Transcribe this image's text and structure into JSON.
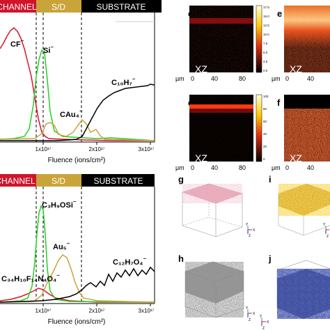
{
  "top_panel": {
    "bands": [
      {
        "label": "CHANNEL",
        "color": "#d0142c"
      },
      {
        "label": "S/D",
        "color": "#c9a43a"
      },
      {
        "label": "SUBSTRATE",
        "color": "#000000"
      }
    ],
    "species_labels": [
      "CF",
      "Si",
      "CAu₄",
      "C₁₀H₇"
    ],
    "superscripts": [
      "⁻",
      "⁻",
      "⁻",
      "⁻"
    ],
    "xticks": [
      "1x10¹⁷",
      "2x10¹⁷",
      "3x10¹⁷"
    ],
    "xlabel": "Fluence (ions/cm²)"
  },
  "bottom_panel": {
    "bands": [
      {
        "label": "CHANNEL",
        "color": "#d0142c"
      },
      {
        "label": "S/D",
        "color": "#c9a43a"
      },
      {
        "label": "SUBSTRATE",
        "color": "#000000"
      }
    ],
    "species_labels": [
      "C₃H₉OSi",
      "Au₅",
      "C₁₂H₇O₄",
      "C₃₄H₁₀F₁₄N₄O₄"
    ],
    "superscripts": [
      "⁻",
      "⁻",
      "⁻",
      "⁻"
    ],
    "xticks": [
      "1x10¹⁷",
      "2x10¹⁷",
      "3x10¹⁷"
    ],
    "xlabel": "Fluence (ions/cm²)"
  },
  "maps": {
    "panels": [
      {
        "letter": "c",
        "plane": "XZ"
      },
      {
        "letter": "e",
        "plane": "XZ"
      },
      {
        "letter": "d",
        "plane": "XZ"
      },
      {
        "letter": "f",
        "plane": "XZ"
      }
    ],
    "axis_unit": "µm",
    "axis_ticks": [
      "0",
      "40",
      "80"
    ],
    "colorbar_ticks_c": [
      "17.5",
      "15.0",
      "12.5",
      "10.0",
      "7.5",
      "5.0",
      "2.5",
      "0.0"
    ],
    "colorbar_ticks_d": [
      "100",
      "80",
      "60",
      "40",
      "20",
      "0"
    ]
  },
  "volumes": {
    "panels": [
      {
        "letter": "g",
        "color": "#d98a98"
      },
      {
        "letter": "i",
        "color": "#d4a020"
      },
      {
        "letter": "h",
        "color": "#555555"
      },
      {
        "letter": "j",
        "color": "#1a2466"
      }
    ],
    "axis_labels": [
      "Y",
      "X",
      "Z"
    ]
  }
}
